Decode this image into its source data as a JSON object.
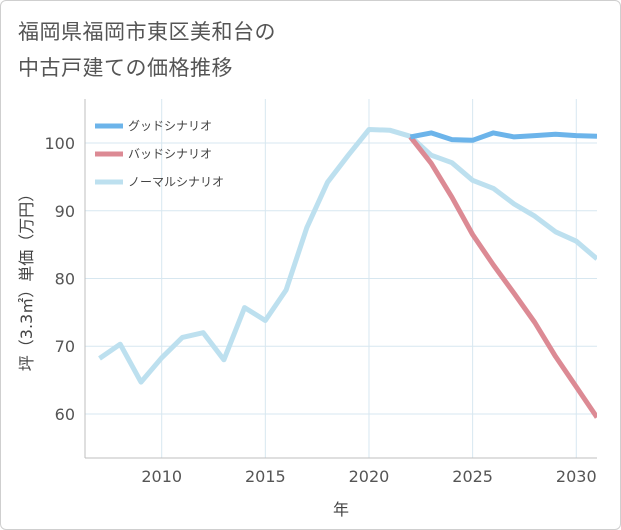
{
  "title": {
    "line1": "福岡県福岡市東区美和台の",
    "line2": "中古戸建ての価格推移"
  },
  "chart_data": {
    "type": "line",
    "xlabel": "年",
    "ylabel": "坪（3.3㎡）単価（万円）",
    "xlim": [
      2006.3,
      2031
    ],
    "ylim": [
      53.5,
      106.5
    ],
    "xticks": [
      2010,
      2015,
      2020,
      2025,
      2030
    ],
    "yticks": [
      60,
      70,
      80,
      90,
      100
    ],
    "legend_position": "top-left",
    "series": [
      {
        "name": "グッドシナリオ",
        "color": "#6cb4ea",
        "x": [
          2022,
          2023,
          2024,
          2025,
          2026,
          2027,
          2028,
          2029,
          2030,
          2031
        ],
        "values": [
          100.9,
          101.5,
          100.5,
          100.4,
          101.5,
          100.9,
          101.1,
          101.3,
          101.1,
          101.0
        ]
      },
      {
        "name": "バッドシナリオ",
        "color": "#dc8a94",
        "x": [
          2022,
          2023,
          2024,
          2025,
          2026,
          2027,
          2028,
          2029,
          2030,
          2031
        ],
        "values": [
          100.9,
          97.0,
          92.0,
          86.5,
          82.0,
          77.8,
          73.5,
          68.5,
          64.0,
          59.5
        ]
      },
      {
        "name": "ノーマルシナリオ",
        "color": "#bde0ef",
        "x": [
          2007,
          2008,
          2009,
          2010,
          2011,
          2012,
          2013,
          2014,
          2015,
          2016,
          2017,
          2018,
          2019,
          2020,
          2021,
          2022,
          2023,
          2024,
          2025,
          2026,
          2027,
          2028,
          2029,
          2030,
          2031
        ],
        "values": [
          68.2,
          70.3,
          64.7,
          68.3,
          71.3,
          72.0,
          68.0,
          75.7,
          73.8,
          78.3,
          87.5,
          94.2,
          98.2,
          102.0,
          101.9,
          101.0,
          98.2,
          97.1,
          94.5,
          93.3,
          91.0,
          89.2,
          86.9,
          85.5,
          82.9
        ]
      }
    ]
  }
}
